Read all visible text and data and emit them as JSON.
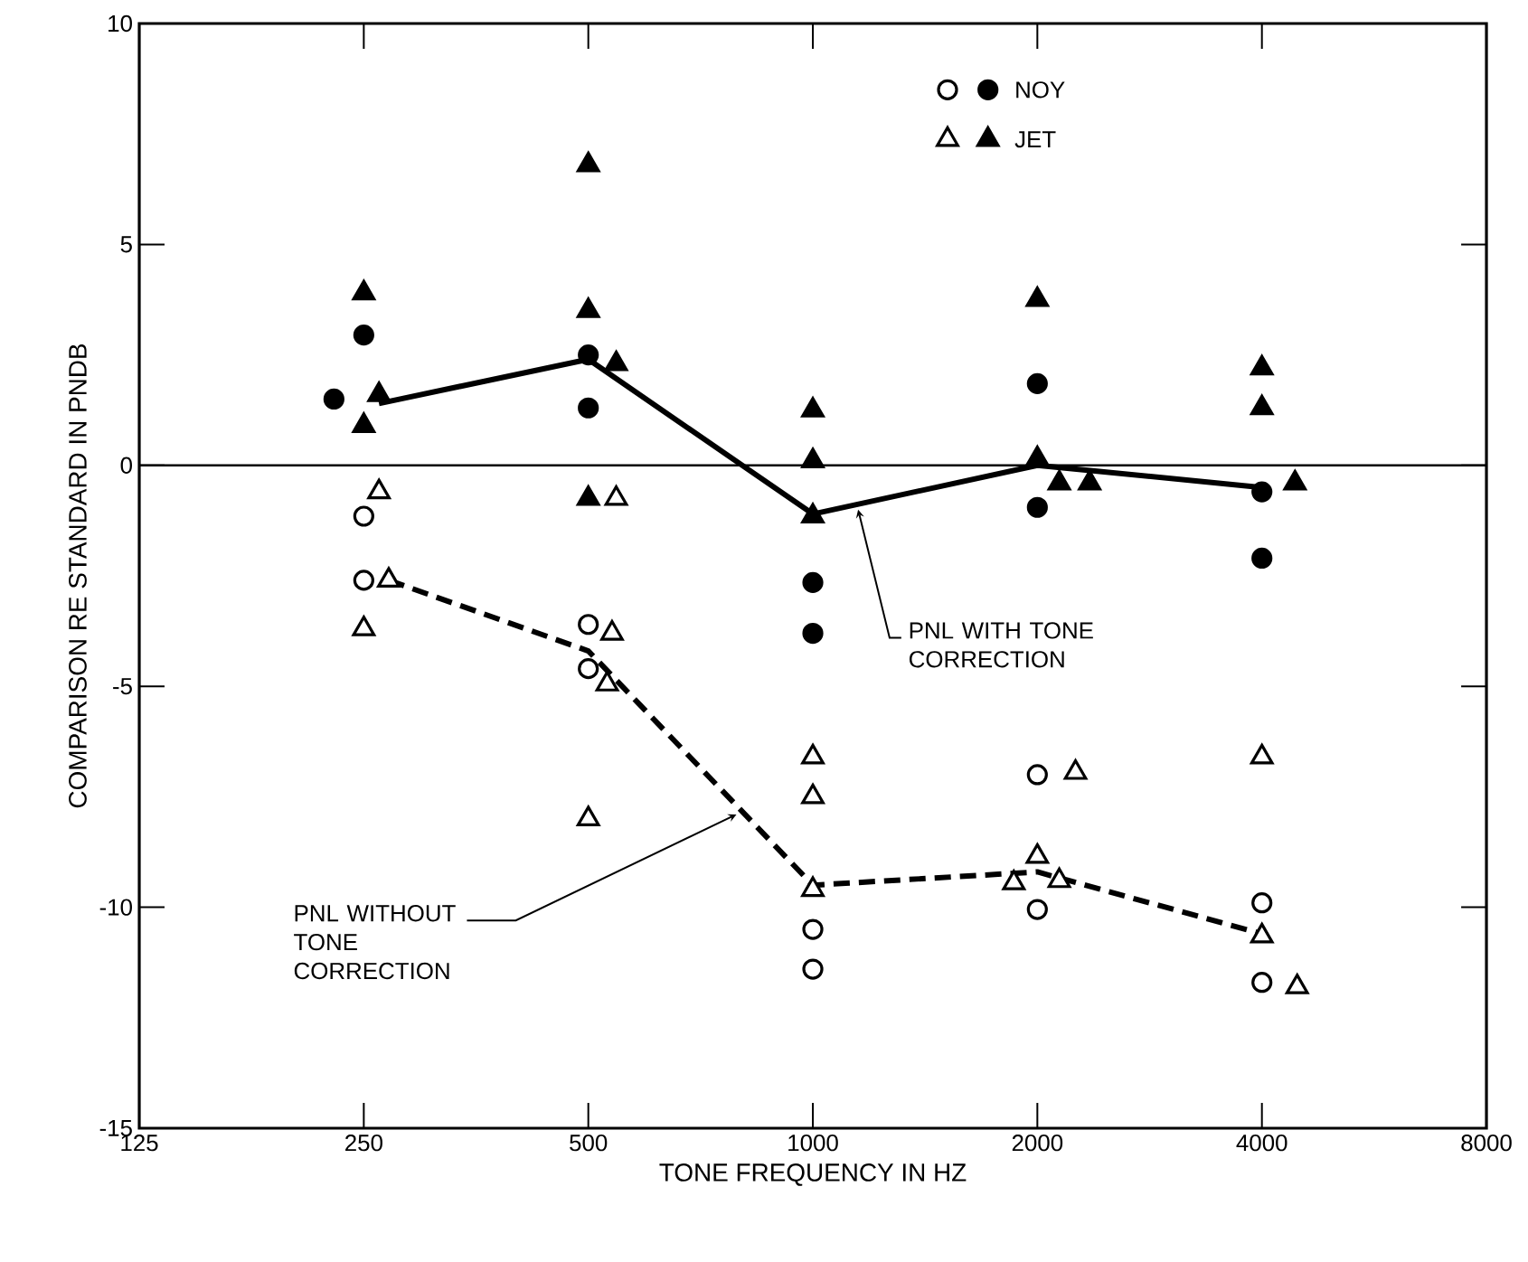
{
  "chart_data": {
    "type": "scatter",
    "xlabel": "TONE FREQUENCY IN HZ",
    "ylabel": "COMPARISON RE STANDARD IN PNDB",
    "log": "x",
    "xlim": [
      125,
      8000
    ],
    "ylim": [
      -15,
      10
    ],
    "xticks": [
      125,
      250,
      500,
      1000,
      2000,
      4000,
      8000
    ],
    "yticks": [
      -15,
      -10,
      -5,
      0,
      5,
      10
    ],
    "grid": false,
    "legend": "top right",
    "ref_lines": [
      {
        "axis": "y",
        "value": 0,
        "color": "#000000",
        "line_style": "solid"
      }
    ],
    "series": [
      {
        "name": "NOY",
        "marker": "circle",
        "color": "#000000",
        "x": [
          250,
          228,
          500,
          500,
          1000,
          1000,
          2000,
          2000,
          4000,
          4000
        ],
        "values": [
          2.95,
          1.5,
          2.5,
          1.3,
          -2.65,
          -3.8,
          1.85,
          -0.95,
          -0.6,
          -2.1
        ]
      },
      {
        "marker": "circle",
        "color": "#ffffff",
        "x": [
          250,
          250,
          500,
          500,
          1000,
          1000,
          2000,
          2000,
          4000,
          4000
        ],
        "values": [
          -1.15,
          -2.6,
          -3.6,
          -4.6,
          -10.5,
          -11.4,
          -7.0,
          -10.05,
          -9.9,
          -11.7
        ]
      },
      {
        "name": "JET",
        "marker": "triangle",
        "color": "#000000",
        "x": [
          250,
          262,
          250,
          500,
          500,
          545,
          500,
          1000,
          1000,
          1000,
          2000,
          2000,
          2140,
          2350,
          4000,
          4000,
          4430
        ],
        "values": [
          3.9,
          1.6,
          0.9,
          6.8,
          3.5,
          2.3,
          -0.75,
          1.25,
          0.1,
          -1.15,
          3.75,
          0.15,
          -0.4,
          -0.4,
          2.2,
          1.3,
          -0.4
        ]
      },
      {
        "marker": "triangle",
        "color": "#ffffff",
        "x": [
          262,
          270,
          250,
          545,
          538,
          530,
          500,
          1000,
          1000,
          1000,
          2250,
          2000,
          1860,
          2140,
          4000,
          4000,
          4460
        ],
        "values": [
          -0.6,
          -2.6,
          -3.7,
          -0.75,
          -3.8,
          -4.95,
          -8.0,
          -6.6,
          -7.5,
          -9.6,
          -6.95,
          -8.85,
          -9.45,
          -9.4,
          -6.6,
          -10.65,
          -11.8
        ]
      },
      {
        "type": "line",
        "line_style": "solid",
        "marker": "none",
        "color": "#000000",
        "x": [
          262,
          500,
          1000,
          2000,
          4000
        ],
        "values": [
          1.4,
          2.4,
          -1.1,
          0.0,
          -0.5
        ]
      },
      {
        "type": "line",
        "line_style": "dashed",
        "marker": "none",
        "color": "#000000",
        "x": [
          270,
          500,
          1000,
          2000,
          4000
        ],
        "values": [
          -2.6,
          -4.2,
          -9.5,
          -9.2,
          -10.6
        ]
      }
    ],
    "annotations": [
      {
        "text": "PNL WITH TONE CORRECTION",
        "x": 1150,
        "y": -1.0
      },
      {
        "text": "PNL WITHOUT TONE CORRECTION",
        "x": 790,
        "y": -7.9
      }
    ]
  }
}
